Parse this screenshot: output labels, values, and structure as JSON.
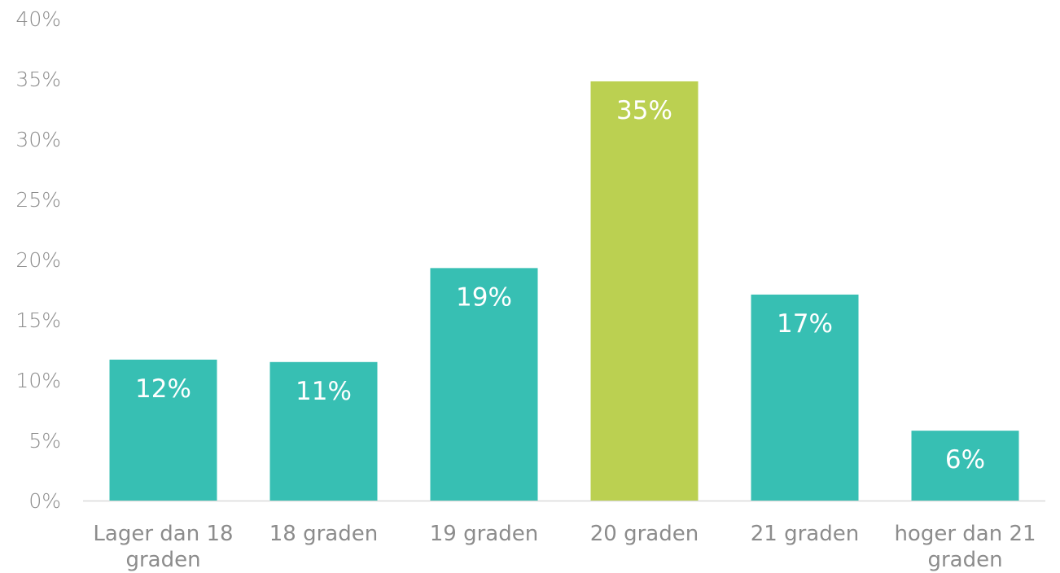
{
  "chart_data": {
    "type": "bar",
    "title": "",
    "xlabel": "",
    "ylabel": "",
    "categories": [
      [
        "Lager dan 18",
        "graden"
      ],
      [
        "18 graden"
      ],
      [
        "19 graden"
      ],
      [
        "20 graden"
      ],
      [
        "21 graden"
      ],
      [
        "hoger dan 21",
        "graden"
      ]
    ],
    "values": [
      11.7,
      11.5,
      19.3,
      34.8,
      17.1,
      5.8
    ],
    "data_labels": [
      "12%",
      "11%",
      "19%",
      "35%",
      "17%",
      "6%"
    ],
    "y_ticks": [
      "0%",
      "5%",
      "10%",
      "15%",
      "20%",
      "25%",
      "30%",
      "35%",
      "40%"
    ],
    "ylim": [
      0,
      40
    ],
    "grid": false,
    "legend": "none",
    "colors": {
      "default_bar": "#37bfb3",
      "highlight_bar": "#bbd051",
      "axis_line": "#d9d9d9",
      "tick_text": "#8c8c8c",
      "data_label_text": "#ffffff"
    },
    "highlight_index": 3
  }
}
